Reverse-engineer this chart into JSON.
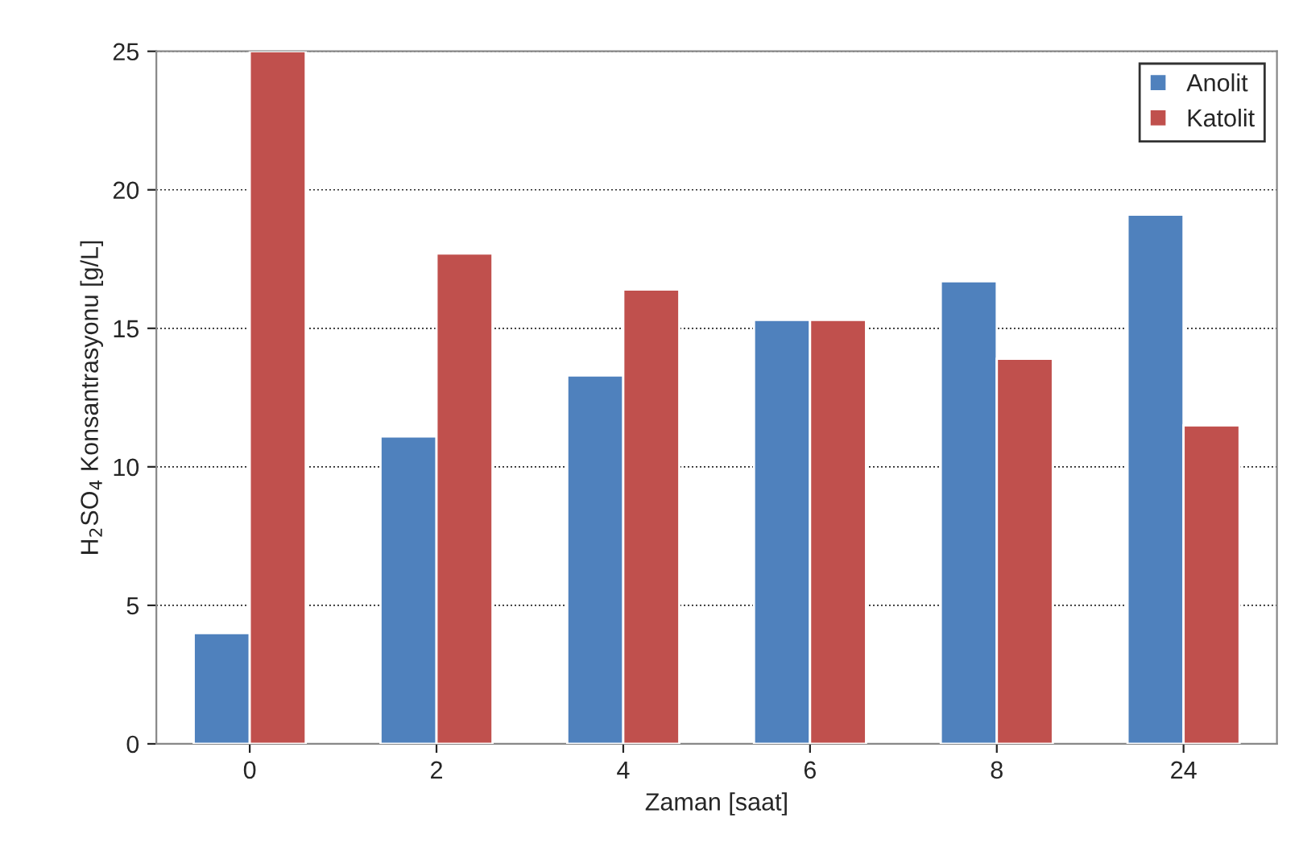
{
  "chart_data": {
    "type": "bar",
    "xlabel": "Zaman [saat]",
    "ylabel": "H$_{2}$SO$_{4}$ Konsantrasyonu [g/L]",
    "categories": [
      "0",
      "2",
      "4",
      "6",
      "8",
      "24"
    ],
    "series": [
      {
        "name": "Anolit",
        "color": "#4f81bd",
        "values": [
          4.0,
          11.1,
          13.3,
          15.3,
          16.7,
          19.1
        ]
      },
      {
        "name": "Katolit",
        "color": "#c0504d",
        "values": [
          25.0,
          17.7,
          16.4,
          15.3,
          13.9,
          11.5
        ]
      }
    ],
    "ylim": [
      0,
      25
    ],
    "yticks": [
      0,
      5,
      10,
      15,
      20,
      25
    ],
    "grid": "y",
    "legend": "top right"
  }
}
